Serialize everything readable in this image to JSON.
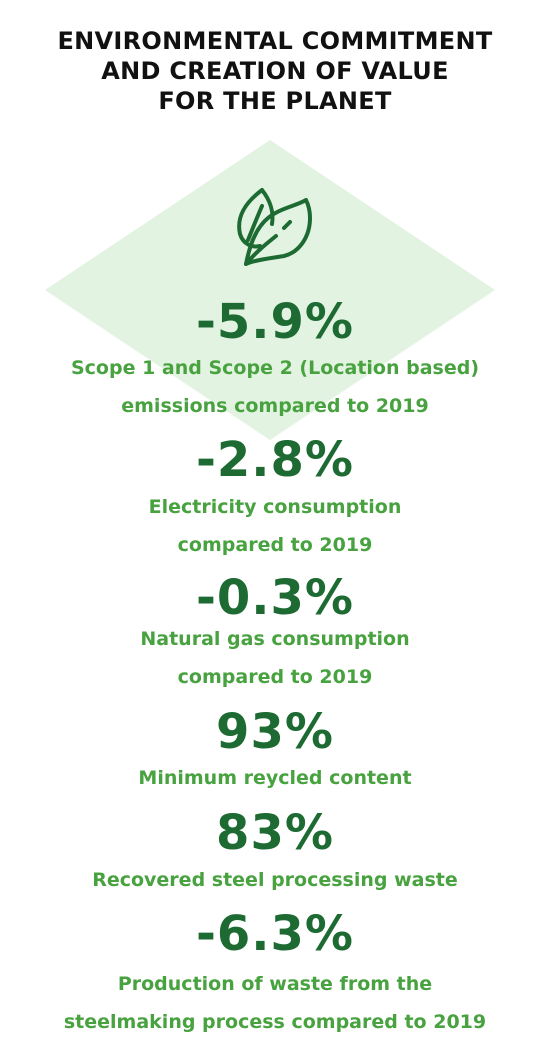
{
  "title": {
    "lines": [
      "ENVIRONMENTAL COMMITMENT",
      "AND CREATION OF VALUE",
      "FOR THE PLANET"
    ]
  },
  "colors": {
    "title": "#111111",
    "value": "#1d6b33",
    "label": "#48a23f",
    "diamond": "#e3f3e1",
    "icon": "#1d6b33"
  },
  "icon": "leaves-icon",
  "stats": [
    {
      "value": "-5.9%",
      "label_lines": [
        "Scope 1 and Scope 2 (Location based)",
        "emissions compared to 2019"
      ]
    },
    {
      "value": "-2.8%",
      "label_lines": [
        "Electricity consumption",
        "compared to 2019"
      ]
    },
    {
      "value": "-0.3%",
      "label_lines": [
        "Natural gas consumption",
        "compared to 2019"
      ]
    },
    {
      "value": "93%",
      "label_lines": [
        "Minimum reycled content"
      ]
    },
    {
      "value": "83%",
      "label_lines": [
        "Recovered steel processing waste"
      ]
    },
    {
      "value": "-6.3%",
      "label_lines": [
        "Production of waste from the",
        "steelmaking process compared to 2019"
      ]
    }
  ]
}
